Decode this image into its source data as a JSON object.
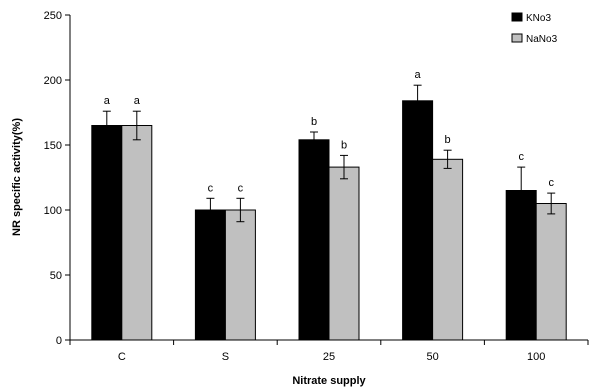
{
  "chart_data": {
    "type": "bar",
    "title": "",
    "xlabel": "Nitrate supply",
    "ylabel": "NR specific activity(%)",
    "categories": [
      "C",
      "S",
      "25",
      "50",
      "100"
    ],
    "ylim": [
      0,
      250
    ],
    "yticks": [
      0,
      50,
      100,
      150,
      200,
      250
    ],
    "grid": false,
    "legend_position": "top-right",
    "series": [
      {
        "name": "KNo3",
        "color": "#000000",
        "values": [
          165,
          100,
          154,
          184,
          115
        ],
        "errors": [
          11,
          9,
          6,
          12,
          18
        ],
        "labels": [
          "a",
          "c",
          "b",
          "a",
          "c"
        ]
      },
      {
        "name": "NaNo3",
        "color": "#c0c0c0",
        "values": [
          165,
          100,
          133,
          139,
          105
        ],
        "errors": [
          11,
          9,
          9,
          7,
          8
        ],
        "labels": [
          "a",
          "c",
          "b",
          "b",
          "c"
        ]
      }
    ]
  }
}
